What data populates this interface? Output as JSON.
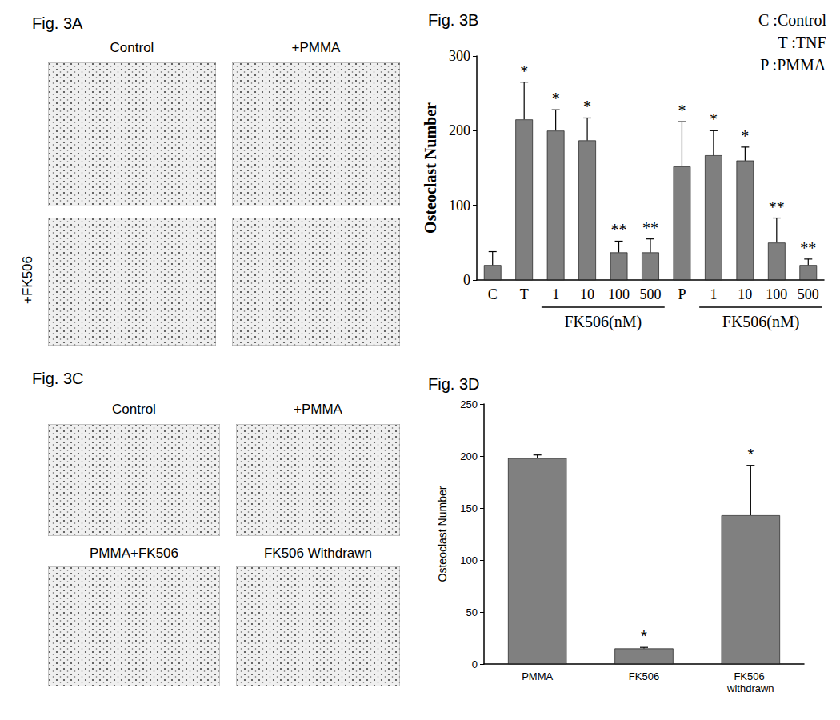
{
  "chart_data": [
    {
      "type": "bar",
      "title": "Fig. 3B",
      "categories": [
        "C",
        "T",
        "1",
        "10",
        "100",
        "500",
        "P",
        "1",
        "10",
        "100",
        "500"
      ],
      "values": [
        20,
        215,
        200,
        187,
        37,
        37,
        152,
        167,
        160,
        50,
        20
      ],
      "errors": [
        18,
        50,
        28,
        30,
        15,
        18,
        60,
        33,
        18,
        33,
        8
      ],
      "significance": [
        null,
        "*",
        "*",
        "*",
        "**",
        "**",
        "*",
        "*",
        "*",
        "**",
        "**"
      ],
      "groups": [
        {
          "label": "FK506(nM)",
          "span": [
            2,
            5
          ]
        },
        {
          "label": "FK506(nM)",
          "span": [
            7,
            10
          ]
        }
      ],
      "annotations": [
        "C :Control",
        "T :TNF",
        "P :PMMA"
      ],
      "y_label": "Osteoclast Number",
      "color": "#7f7f7f",
      "ylim": [
        0,
        300
      ],
      "yticks": [
        0,
        100,
        200,
        300
      ],
      "grid": false
    },
    {
      "type": "bar",
      "title": "Fig. 3D",
      "categories": [
        "PMMA",
        "FK506",
        "FK506 withdrawn"
      ],
      "values": [
        198,
        15,
        143
      ],
      "errors": [
        3,
        1,
        48
      ],
      "significance": [
        null,
        "*",
        "*"
      ],
      "y_label": "Osteoclast Number",
      "color": "#808080",
      "ylim": [
        0,
        250
      ],
      "yticks": [
        0,
        50,
        100,
        150,
        200,
        250
      ],
      "grid": false
    }
  ],
  "panels": [
    {
      "title": "Fig. 3A",
      "labels": [
        "Control",
        "+PMMA",
        "+FK506"
      ]
    },
    {
      "title": "Fig. 3C",
      "labels": [
        "Control",
        "+PMMA",
        "PMMA+FK506",
        "FK506 Withdrawn"
      ]
    }
  ]
}
